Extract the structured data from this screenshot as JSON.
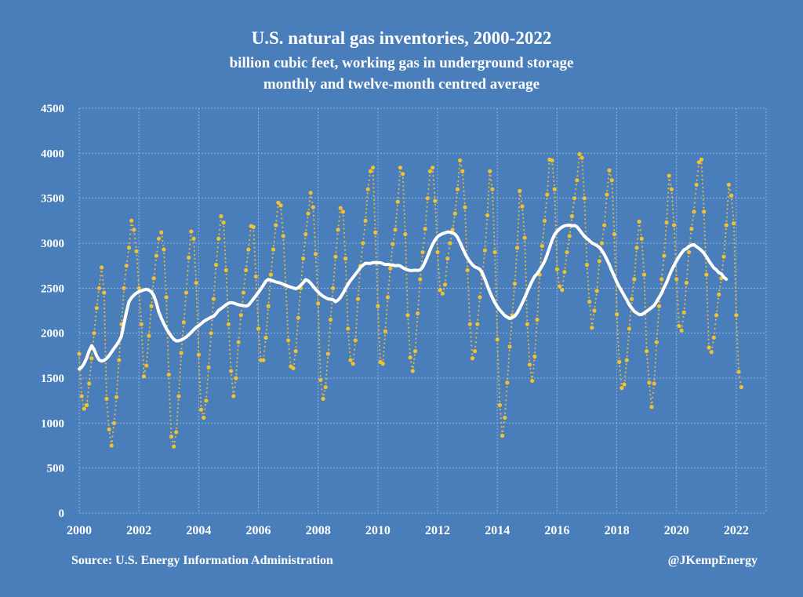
{
  "chart_data": {
    "type": "line",
    "title": "U.S. natural gas inventories, 2000-2022",
    "subtitle_1": "billion cubic feet, working gas in underground storage",
    "subtitle_2": "monthly and twelve-month centred average",
    "xlabel": "",
    "ylabel": "",
    "xlim": [
      2000,
      2023
    ],
    "ylim": [
      0,
      4500
    ],
    "x_ticks": [
      "2000",
      "2002",
      "2004",
      "2006",
      "2008",
      "2010",
      "2012",
      "2014",
      "2016",
      "2018",
      "2020",
      "2022"
    ],
    "y_ticks": [
      "0",
      "500",
      "1000",
      "1500",
      "2000",
      "2500",
      "3000",
      "3500",
      "4000",
      "4500"
    ],
    "grid": true,
    "legend": "none",
    "monthly_start": "2000-01",
    "series": [
      {
        "name": "Monthly working gas",
        "style": "dotted-markers",
        "color": "#f2c12e",
        "values": [
          1770,
          1300,
          1160,
          1200,
          1440,
          1720,
          2000,
          2280,
          2500,
          2730,
          2450,
          1270,
          930,
          750,
          1000,
          1290,
          1700,
          2100,
          2500,
          2750,
          2950,
          3250,
          3150,
          2910,
          2500,
          2100,
          1520,
          1640,
          1970,
          2300,
          2610,
          2860,
          3050,
          3120,
          2930,
          2400,
          1540,
          850,
          740,
          900,
          1300,
          1780,
          2120,
          2450,
          2840,
          3130,
          3050,
          2560,
          1760,
          1150,
          1060,
          1250,
          1620,
          2000,
          2380,
          2760,
          3050,
          3300,
          3230,
          2700,
          2100,
          1580,
          1300,
          1500,
          1900,
          2200,
          2450,
          2700,
          2930,
          3190,
          3180,
          2630,
          2050,
          1700,
          1700,
          1950,
          2300,
          2650,
          2930,
          3200,
          3450,
          3420,
          3080,
          2530,
          1920,
          1630,
          1610,
          1800,
          2170,
          2500,
          2830,
          3100,
          3330,
          3560,
          3400,
          2880,
          2330,
          1480,
          1270,
          1400,
          1770,
          2150,
          2500,
          2850,
          3150,
          3390,
          3350,
          2830,
          2050,
          1700,
          1660,
          1920,
          2380,
          2750,
          3000,
          3250,
          3600,
          3800,
          3840,
          3120,
          2300,
          1680,
          1660,
          2020,
          2400,
          2720,
          2990,
          3150,
          3460,
          3840,
          3770,
          3100,
          2200,
          1730,
          1580,
          1800,
          2220,
          2600,
          2900,
          3160,
          3500,
          3800,
          3840,
          3470,
          2900,
          2480,
          2440,
          2540,
          2830,
          3000,
          3150,
          3330,
          3600,
          3920,
          3800,
          3400,
          2700,
          2100,
          1720,
          1800,
          2100,
          2400,
          2650,
          2920,
          3310,
          3800,
          3600,
          2900,
          1930,
          1200,
          860,
          1060,
          1450,
          1850,
          2200,
          2550,
          2950,
          3580,
          3410,
          3060,
          2100,
          1650,
          1470,
          1740,
          2150,
          2650,
          2970,
          3250,
          3540,
          3930,
          3920,
          3600,
          2710,
          2520,
          2480,
          2680,
          2900,
          3080,
          3300,
          3500,
          3700,
          3990,
          3950,
          3500,
          2760,
          2350,
          2060,
          2250,
          2470,
          2800,
          3000,
          3200,
          3540,
          3810,
          3700,
          3100,
          2210,
          1680,
          1390,
          1430,
          1700,
          2050,
          2380,
          2600,
          2950,
          3240,
          3050,
          2650,
          1800,
          1450,
          1180,
          1440,
          1900,
          2300,
          2600,
          2860,
          3230,
          3750,
          3600,
          3200,
          2600,
          2080,
          2030,
          2230,
          2560,
          2900,
          3160,
          3350,
          3650,
          3900,
          3930,
          3350,
          2650,
          1840,
          1790,
          1950,
          2200,
          2430,
          2610,
          2850,
          3200,
          3650,
          3530,
          3220,
          2200,
          1570,
          1400
        ]
      },
      {
        "name": "Twelve-month centred average",
        "style": "solid",
        "color": "#ffffff",
        "start": "2000-01",
        "end": "2021-09"
      }
    ]
  },
  "footer": {
    "source": "Source: U.S. Energy Information Administration",
    "handle": "@JKempEnergy"
  }
}
